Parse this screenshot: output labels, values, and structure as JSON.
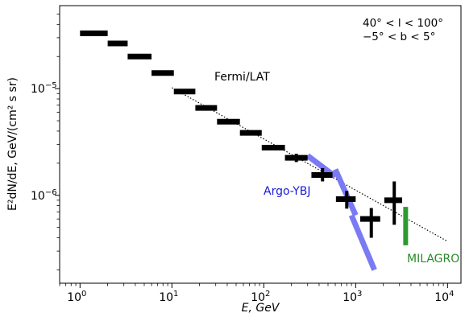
{
  "chart_data": {
    "type": "scatter",
    "title": "",
    "xlabel": "E, GeV",
    "ylabel": "E²dN/dE, GeV/(cm² s sr)",
    "xscale": "log",
    "yscale": "log",
    "xlim": [
      0.6,
      14000
    ],
    "ylim": [
      1.5e-07,
      6e-05
    ],
    "grid": false,
    "x_ticks": [
      {
        "value": 1,
        "base": "10",
        "exp": "0"
      },
      {
        "value": 10,
        "base": "10",
        "exp": "1"
      },
      {
        "value": 100,
        "base": "10",
        "exp": "2"
      },
      {
        "value": 1000,
        "base": "10",
        "exp": "3"
      },
      {
        "value": 10000,
        "base": "10",
        "exp": "4"
      }
    ],
    "y_ticks": [
      {
        "value": 1e-06,
        "base": "10",
        "exp": "−6"
      },
      {
        "value": 1e-05,
        "base": "10",
        "exp": "−5"
      }
    ],
    "region_label": {
      "line1": "40° < l < 100°",
      "line2": "−5° < b < 5°"
    },
    "annotations": {
      "fermi": "Fermi/LAT",
      "argo": "Argo-YBJ",
      "milagro": "MILAGRO"
    },
    "colors": {
      "fermi": "#000000",
      "argo": "#7a7af5",
      "milagro": "#2e9a2e",
      "argo_label": "#1a1ad6",
      "milagro_label": "#2a8a2a"
    },
    "series": [
      {
        "key": "fermi",
        "style": "bins",
        "points": [
          {
            "x": 1.4,
            "y": 3.3e-05,
            "xlo": 1.0,
            "xhi": 2.0
          },
          {
            "x": 2.65,
            "y": 2.65e-05,
            "xlo": 2.0,
            "xhi": 3.3
          },
          {
            "x": 4.5,
            "y": 2e-05,
            "xlo": 3.3,
            "xhi": 6.0
          },
          {
            "x": 7.9,
            "y": 1.4e-05,
            "xlo": 6.0,
            "xhi": 10.5
          },
          {
            "x": 13.8,
            "y": 9.4e-06,
            "xlo": 10.5,
            "xhi": 18.0
          },
          {
            "x": 23.5,
            "y": 6.6e-06,
            "xlo": 18.0,
            "xhi": 31.0
          },
          {
            "x": 41.5,
            "y": 4.9e-06,
            "xlo": 31.0,
            "xhi": 55.0
          },
          {
            "x": 72.0,
            "y": 3.85e-06,
            "xlo": 55.0,
            "xhi": 95.0
          },
          {
            "x": 128.0,
            "y": 2.8e-06,
            "xlo": 95.0,
            "xhi": 170.0
          },
          {
            "x": 226.0,
            "y": 2.25e-06,
            "xlo": 170.0,
            "xhi": 300.0,
            "ylo": 2.05e-06,
            "yhi": 2.45e-06
          },
          {
            "x": 436.0,
            "y": 1.55e-06,
            "xlo": 330.0,
            "xhi": 560.0,
            "ylo": 1.35e-06,
            "yhi": 1.8e-06
          },
          {
            "x": 800.0,
            "y": 9.2e-07,
            "xlo": 610.0,
            "xhi": 1000.0,
            "ylo": 7.5e-07,
            "yhi": 1.1e-06
          },
          {
            "x": 1480.0,
            "y": 6e-07,
            "xlo": 1120.0,
            "xhi": 1850.0,
            "ylo": 4e-07,
            "yhi": 7.6e-07
          },
          {
            "x": 2630.0,
            "y": 9e-07,
            "xlo": 2050.0,
            "xhi": 3200.0,
            "ylo": 5.3e-07,
            "yhi": 1.35e-06
          }
        ]
      },
      {
        "key": "argo",
        "style": "bands",
        "segments": [
          {
            "x0": 300,
            "y0": 2.35e-06,
            "x1": 600,
            "y1": 1.5e-06
          },
          {
            "x0": 600,
            "y0": 1.75e-06,
            "x1": 1000,
            "y1": 6.5e-07
          },
          {
            "x0": 900,
            "y0": 6.5e-07,
            "x1": 1600,
            "y1": 2e-07
          }
        ]
      },
      {
        "key": "milagro",
        "style": "band",
        "segments": [
          {
            "x0": 3500,
            "y0": 3.4e-07,
            "x1": 3500,
            "y1": 7.8e-07
          }
        ]
      },
      {
        "key": "fit",
        "style": "dotted",
        "segments": [
          {
            "x0": 10,
            "y0": 1.02e-05,
            "x1": 10000,
            "y1": 3.7e-07
          }
        ]
      }
    ]
  }
}
